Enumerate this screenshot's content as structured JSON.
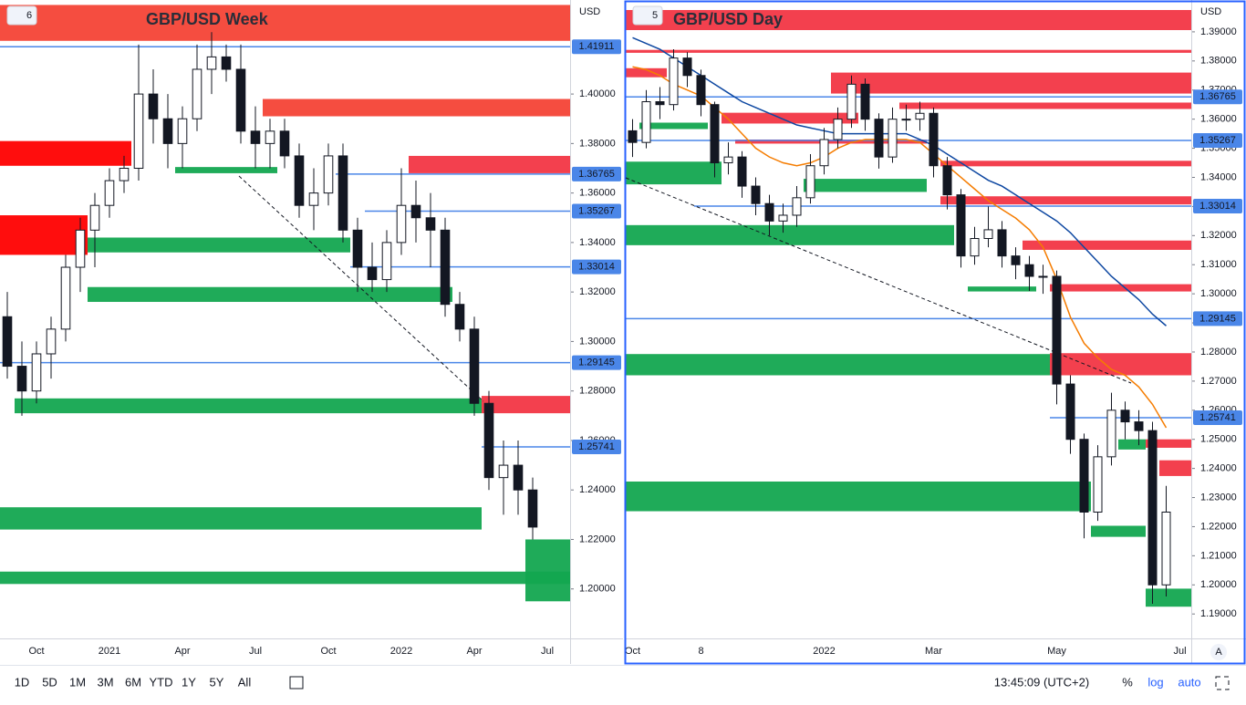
{
  "chart_data": [
    {
      "type": "candlestick",
      "badge": "6",
      "title": "GBP/USD Week",
      "currency": "USD",
      "up_color": "#ffffff",
      "down_color": "#131722",
      "grid": false,
      "ylim": [
        1.18,
        1.438
      ],
      "yticks": [
        {
          "value": 1.2,
          "label": "1.20000"
        },
        {
          "value": 1.22,
          "label": "1.22000"
        },
        {
          "value": 1.24,
          "label": "1.24000"
        },
        {
          "value": 1.26,
          "label": "1.26000"
        },
        {
          "value": 1.28,
          "label": "1.28000"
        },
        {
          "value": 1.3,
          "label": "1.30000"
        },
        {
          "value": 1.32,
          "label": "1.32000"
        },
        {
          "value": 1.34,
          "label": "1.34000"
        },
        {
          "value": 1.36,
          "label": "1.36000"
        },
        {
          "value": 1.38,
          "label": "1.38000"
        },
        {
          "value": 1.4,
          "label": "1.40000"
        }
      ],
      "categories": [
        null,
        null,
        "Oct",
        null,
        null,
        null,
        null,
        "2021",
        null,
        null,
        null,
        null,
        "Apr",
        null,
        null,
        null,
        null,
        "Jul",
        null,
        null,
        null,
        null,
        "Oct",
        null,
        null,
        null,
        null,
        "2022",
        null,
        null,
        null,
        null,
        "Apr",
        null,
        null,
        null,
        null,
        "Jul"
      ],
      "candles": [
        [
          1.31,
          1.32,
          1.285,
          1.29
        ],
        [
          1.29,
          1.3,
          1.27,
          1.28
        ],
        [
          1.28,
          1.3,
          1.275,
          1.295
        ],
        [
          1.295,
          1.31,
          1.285,
          1.305
        ],
        [
          1.305,
          1.335,
          1.3,
          1.33
        ],
        [
          1.33,
          1.35,
          1.32,
          1.345
        ],
        [
          1.345,
          1.36,
          1.33,
          1.355
        ],
        [
          1.355,
          1.37,
          1.35,
          1.365
        ],
        [
          1.365,
          1.375,
          1.36,
          1.37
        ],
        [
          1.37,
          1.42,
          1.365,
          1.4
        ],
        [
          1.4,
          1.41,
          1.38,
          1.39
        ],
        [
          1.39,
          1.4,
          1.37,
          1.38
        ],
        [
          1.38,
          1.395,
          1.37,
          1.39
        ],
        [
          1.39,
          1.42,
          1.385,
          1.41
        ],
        [
          1.41,
          1.425,
          1.4,
          1.415
        ],
        [
          1.415,
          1.42,
          1.405,
          1.41
        ],
        [
          1.41,
          1.42,
          1.38,
          1.385
        ],
        [
          1.385,
          1.395,
          1.37,
          1.38
        ],
        [
          1.38,
          1.39,
          1.37,
          1.385
        ],
        [
          1.385,
          1.39,
          1.37,
          1.375
        ],
        [
          1.375,
          1.38,
          1.35,
          1.355
        ],
        [
          1.355,
          1.37,
          1.345,
          1.36
        ],
        [
          1.36,
          1.38,
          1.355,
          1.375
        ],
        [
          1.375,
          1.38,
          1.34,
          1.345
        ],
        [
          1.345,
          1.35,
          1.32,
          1.33
        ],
        [
          1.33,
          1.34,
          1.32,
          1.325
        ],
        [
          1.325,
          1.345,
          1.32,
          1.34
        ],
        [
          1.34,
          1.37,
          1.335,
          1.355
        ],
        [
          1.355,
          1.365,
          1.34,
          1.35
        ],
        [
          1.35,
          1.36,
          1.33,
          1.345
        ],
        [
          1.345,
          1.35,
          1.31,
          1.315
        ],
        [
          1.315,
          1.32,
          1.3,
          1.305
        ],
        [
          1.305,
          1.31,
          1.27,
          1.275
        ],
        [
          1.275,
          1.28,
          1.24,
          1.245
        ],
        [
          1.245,
          1.26,
          1.23,
          1.25
        ],
        [
          1.25,
          1.26,
          1.23,
          1.24
        ],
        [
          1.24,
          1.245,
          1.22,
          1.225
        ],
        null
      ],
      "zones": [
        {
          "low": 1.4215,
          "high": 1.436,
          "start": 0,
          "end": 40,
          "color": "#f44336"
        },
        {
          "low": 1.391,
          "high": 1.398,
          "start": 18,
          "end": 40,
          "color": "#f44336"
        },
        {
          "low": 1.371,
          "high": 1.381,
          "start": 0,
          "end": 9,
          "color": "#ff0000"
        },
        {
          "low": 1.335,
          "high": 1.351,
          "start": 0,
          "end": 6,
          "color": "#ff0000"
        },
        {
          "low": 1.368,
          "high": 1.375,
          "start": 28,
          "end": 40,
          "color": "#f23645"
        },
        {
          "low": 1.336,
          "high": 1.342,
          "start": 6,
          "end": 24,
          "color": "#13a650"
        },
        {
          "low": 1.368,
          "high": 1.3705,
          "start": 12,
          "end": 19,
          "color": "#13a650"
        },
        {
          "low": 1.316,
          "high": 1.322,
          "start": 6,
          "end": 31,
          "color": "#13a650"
        },
        {
          "low": 1.271,
          "high": 1.277,
          "start": 1,
          "end": 33,
          "color": "#13a650"
        },
        {
          "low": 1.271,
          "high": 1.278,
          "start": 33,
          "end": 40,
          "color": "#f23645"
        },
        {
          "low": 1.224,
          "high": 1.233,
          "start": 0,
          "end": 33,
          "color": "#13a650"
        },
        {
          "low": 1.202,
          "high": 1.207,
          "start": 0,
          "end": 40,
          "color": "#13a650"
        },
        {
          "low": 1.195,
          "high": 1.22,
          "start": 36,
          "end": 40,
          "color": "#13a650"
        }
      ],
      "price_lines": [
        {
          "value": 1.41911,
          "start": 0
        },
        {
          "value": 1.36765,
          "start": 23
        },
        {
          "value": 1.35267,
          "start": 25
        },
        {
          "value": 1.33014,
          "start": 24
        },
        {
          "value": 1.29145,
          "start": 0
        },
        {
          "value": 1.25741,
          "start": 33
        }
      ],
      "series": []
    },
    {
      "type": "candlestick",
      "badge": "5",
      "title": "GBP/USD Day",
      "currency": "USD",
      "up_color": "#ffffff",
      "down_color": "#131722",
      "grid": false,
      "ylim": [
        1.1816,
        1.4
      ],
      "yticks": [
        {
          "value": 1.19,
          "label": "1.19000"
        },
        {
          "value": 1.2,
          "label": "1.20000"
        },
        {
          "value": 1.21,
          "label": "1.21000"
        },
        {
          "value": 1.22,
          "label": "1.22000"
        },
        {
          "value": 1.23,
          "label": "1.23000"
        },
        {
          "value": 1.24,
          "label": "1.24000"
        },
        {
          "value": 1.25,
          "label": "1.25000"
        },
        {
          "value": 1.26,
          "label": "1.26000"
        },
        {
          "value": 1.27,
          "label": "1.27000"
        },
        {
          "value": 1.28,
          "label": "1.28000"
        },
        {
          "value": 1.29,
          "label": "1.29000"
        },
        {
          "value": 1.3,
          "label": "1.30000"
        },
        {
          "value": 1.31,
          "label": "1.31000"
        },
        {
          "value": 1.32,
          "label": "1.32000"
        },
        {
          "value": 1.33,
          "label": "1.33000"
        },
        {
          "value": 1.34,
          "label": "1.34000"
        },
        {
          "value": 1.35,
          "label": "1.35000"
        },
        {
          "value": 1.36,
          "label": "1.36000"
        },
        {
          "value": 1.37,
          "label": "1.37000"
        },
        {
          "value": 1.38,
          "label": "1.38000"
        },
        {
          "value": 1.39,
          "label": "1.39000"
        }
      ],
      "categories": [
        "Oct",
        null,
        null,
        null,
        null,
        "8",
        null,
        null,
        null,
        null,
        null,
        null,
        null,
        null,
        "2022",
        null,
        null,
        null,
        null,
        null,
        null,
        null,
        "Mar",
        null,
        null,
        null,
        null,
        null,
        null,
        null,
        null,
        "May",
        null,
        null,
        null,
        null,
        null,
        null,
        null,
        null,
        "Jul"
      ],
      "candles": [
        [
          1.356,
          1.36,
          1.347,
          1.352
        ],
        [
          1.352,
          1.37,
          1.35,
          1.366
        ],
        [
          1.366,
          1.371,
          1.36,
          1.365
        ],
        [
          1.365,
          1.384,
          1.363,
          1.381
        ],
        [
          1.381,
          1.383,
          1.371,
          1.375
        ],
        [
          1.375,
          1.377,
          1.361,
          1.365
        ],
        [
          1.365,
          1.366,
          1.34,
          1.345
        ],
        [
          1.345,
          1.352,
          1.341,
          1.347
        ],
        [
          1.347,
          1.349,
          1.333,
          1.337
        ],
        [
          1.337,
          1.34,
          1.327,
          1.331
        ],
        [
          1.331,
          1.334,
          1.32,
          1.325
        ],
        [
          1.325,
          1.331,
          1.321,
          1.327
        ],
        [
          1.327,
          1.337,
          1.323,
          1.333
        ],
        [
          1.333,
          1.348,
          1.331,
          1.344
        ],
        [
          1.344,
          1.357,
          1.341,
          1.353
        ],
        [
          1.353,
          1.364,
          1.35,
          1.36
        ],
        [
          1.36,
          1.375,
          1.357,
          1.372
        ],
        [
          1.372,
          1.374,
          1.356,
          1.36
        ],
        [
          1.36,
          1.362,
          1.343,
          1.347
        ],
        [
          1.347,
          1.364,
          1.345,
          1.36
        ],
        [
          1.36,
          1.365,
          1.356,
          1.36
        ],
        [
          1.36,
          1.366,
          1.356,
          1.362
        ],
        [
          1.362,
          1.364,
          1.34,
          1.344
        ],
        [
          1.344,
          1.347,
          1.329,
          1.334
        ],
        [
          1.334,
          1.336,
          1.309,
          1.313
        ],
        [
          1.313,
          1.323,
          1.31,
          1.319
        ],
        [
          1.319,
          1.33,
          1.316,
          1.322
        ],
        [
          1.322,
          1.325,
          1.309,
          1.313
        ],
        [
          1.313,
          1.316,
          1.305,
          1.31
        ],
        [
          1.31,
          1.313,
          1.301,
          1.306
        ],
        [
          1.306,
          1.31,
          1.3,
          1.306
        ],
        [
          1.306,
          1.308,
          1.262,
          1.269
        ],
        [
          1.269,
          1.272,
          1.245,
          1.25
        ],
        [
          1.25,
          1.252,
          1.216,
          1.225
        ],
        [
          1.225,
          1.248,
          1.222,
          1.244
        ],
        [
          1.244,
          1.266,
          1.241,
          1.26
        ],
        [
          1.26,
          1.263,
          1.25,
          1.256
        ],
        [
          1.256,
          1.26,
          1.248,
          1.253
        ],
        [
          1.253,
          1.256,
          1.1935,
          1.2
        ],
        [
          1.2,
          1.234,
          1.196,
          1.225
        ],
        null
      ],
      "zones": [
        {
          "low": 1.3906,
          "high": 1.3975,
          "start": 0,
          "end": 42,
          "color": "#f23645"
        },
        {
          "low": 1.3828,
          "high": 1.3838,
          "start": 0,
          "end": 42,
          "color": "#f23645"
        },
        {
          "low": 1.3744,
          "high": 1.3775,
          "start": 0,
          "end": 3,
          "color": "#f23645"
        },
        {
          "low": 1.3688,
          "high": 1.376,
          "start": 15,
          "end": 42,
          "color": "#f23645"
        },
        {
          "low": 1.3635,
          "high": 1.3657,
          "start": 20,
          "end": 42,
          "color": "#f23645"
        },
        {
          "low": 1.3585,
          "high": 1.3622,
          "start": 7,
          "end": 17,
          "color": "#f23645"
        },
        {
          "low": 1.3566,
          "high": 1.3588,
          "start": 1,
          "end": 6,
          "color": "#13a650"
        },
        {
          "low": 1.3516,
          "high": 1.353,
          "start": 8,
          "end": 22,
          "color": "#f23645"
        },
        {
          "low": 1.3438,
          "high": 1.3457,
          "start": 23,
          "end": 42,
          "color": "#f23645"
        },
        {
          "low": 1.3376,
          "high": 1.3454,
          "start": 0,
          "end": 7,
          "color": "#13a650"
        },
        {
          "low": 1.335,
          "high": 1.3395,
          "start": 13,
          "end": 22,
          "color": "#13a650"
        },
        {
          "low": 1.3307,
          "high": 1.3335,
          "start": 23,
          "end": 42,
          "color": "#f23645"
        },
        {
          "low": 1.3167,
          "high": 1.3236,
          "start": 0,
          "end": 24,
          "color": "#13a650"
        },
        {
          "low": 1.3151,
          "high": 1.3183,
          "start": 29,
          "end": 42,
          "color": "#f23645"
        },
        {
          "low": 1.3008,
          "high": 1.3033,
          "start": 31,
          "end": 42,
          "color": "#f23645"
        },
        {
          "low": 1.3008,
          "high": 1.3025,
          "start": 25,
          "end": 30,
          "color": "#13a650"
        },
        {
          "low": 1.272,
          "high": 1.2796,
          "start": 31,
          "end": 42,
          "color": "#f23645"
        },
        {
          "low": 1.272,
          "high": 1.2793,
          "start": 0,
          "end": 31,
          "color": "#13a650"
        },
        {
          "low": 1.2471,
          "high": 1.25,
          "start": 38,
          "end": 42,
          "color": "#f23645"
        },
        {
          "low": 1.2465,
          "high": 1.25,
          "start": 36,
          "end": 38,
          "color": "#13a650"
        },
        {
          "low": 1.2374,
          "high": 1.2428,
          "start": 39,
          "end": 42,
          "color": "#f23645"
        },
        {
          "low": 1.2253,
          "high": 1.2355,
          "start": 0,
          "end": 34,
          "color": "#13a650"
        },
        {
          "low": 1.2165,
          "high": 1.2203,
          "start": 34,
          "end": 38,
          "color": "#13a650"
        },
        {
          "low": 1.1925,
          "high": 1.1987,
          "start": 38,
          "end": 42,
          "color": "#13a650"
        }
      ],
      "price_lines": [
        {
          "value": 1.36765,
          "start": 0
        },
        {
          "value": 1.35267,
          "start": 0
        },
        {
          "value": 1.33014,
          "start": 5
        },
        {
          "value": 1.29145,
          "start": 0
        },
        {
          "value": 1.25741,
          "start": 31
        }
      ],
      "series": [
        {
          "color": "#f57c00",
          "values": [
            1.378,
            1.377,
            1.375,
            1.372,
            1.37,
            1.368,
            1.364,
            1.36,
            1.355,
            1.35,
            1.347,
            1.345,
            1.344,
            1.345,
            1.347,
            1.35,
            1.352,
            1.353,
            1.353,
            1.353,
            1.353,
            1.352,
            1.348,
            1.344,
            1.34,
            1.336,
            1.332,
            1.329,
            1.326,
            1.322,
            1.316,
            1.305,
            1.292,
            1.283,
            1.278,
            1.274,
            1.272,
            1.268,
            1.262,
            1.254,
            null
          ]
        },
        {
          "color": "#0d47a1",
          "values": [
            1.388,
            1.386,
            1.384,
            1.381,
            1.378,
            1.375,
            1.372,
            1.369,
            1.366,
            1.364,
            1.362,
            1.36,
            1.358,
            1.357,
            1.356,
            1.355,
            1.355,
            1.355,
            1.355,
            1.355,
            1.355,
            1.353,
            1.351,
            1.348,
            1.345,
            1.342,
            1.339,
            1.337,
            1.334,
            1.331,
            1.328,
            1.325,
            1.321,
            1.316,
            1.311,
            1.306,
            1.302,
            1.298,
            1.293,
            1.289,
            null
          ]
        }
      ]
    }
  ],
  "toolbar": {
    "ranges": [
      "1D",
      "5D",
      "1M",
      "3M",
      "6M",
      "YTD",
      "1Y",
      "5Y",
      "All"
    ],
    "time": "13:45:09 (UTC+2)",
    "percent": "%",
    "log": "log",
    "auto": "auto",
    "scale_mode": "A"
  }
}
